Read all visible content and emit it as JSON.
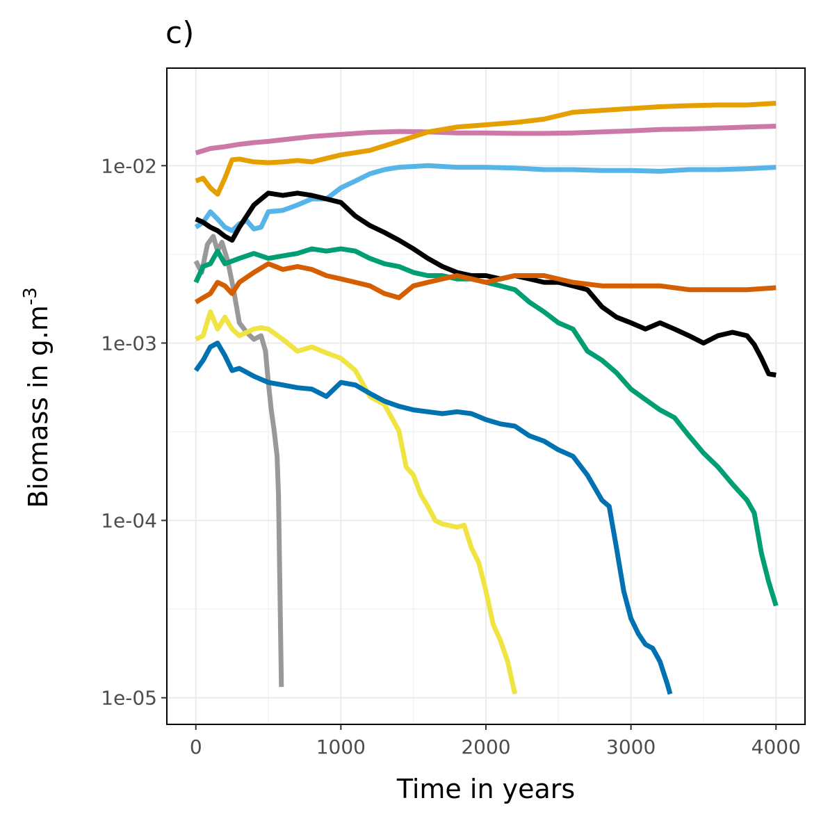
{
  "chart_data": {
    "type": "line",
    "title": "c)",
    "xlabel": "Time in years",
    "ylabel": "Biomass in g.m",
    "ylabel_superscript": "-3",
    "xlim": [
      -200,
      4200
    ],
    "ylim_log10": [
      -5.15,
      -1.45
    ],
    "y_scale": "log10",
    "grid": true,
    "x_ticks": [
      {
        "value": 0,
        "label": "0"
      },
      {
        "value": 1000,
        "label": "1000"
      },
      {
        "value": 2000,
        "label": "2000"
      },
      {
        "value": 3000,
        "label": "3000"
      },
      {
        "value": 4000,
        "label": "4000"
      }
    ],
    "y_ticks": [
      {
        "value": 0.01,
        "label": "1e-02"
      },
      {
        "value": 0.001,
        "label": "1e-03"
      },
      {
        "value": 0.0001,
        "label": "1e-04"
      },
      {
        "value": 1e-05,
        "label": "1e-05"
      }
    ],
    "series": [
      {
        "color": "#999999",
        "x": [
          0,
          40,
          80,
          120,
          150,
          180,
          220,
          260,
          300,
          350,
          400,
          450,
          480,
          500,
          520,
          540,
          560,
          570,
          590
        ],
        "y": [
          0.0029,
          0.0025,
          0.0036,
          0.004,
          0.0033,
          0.0037,
          0.0029,
          0.002,
          0.0013,
          0.00115,
          0.00105,
          0.0011,
          0.0009,
          0.0006,
          0.00042,
          0.00032,
          0.00023,
          0.00014,
          1.15e-05
        ]
      },
      {
        "color": "#CC79A7",
        "x": [
          0,
          100,
          200,
          300,
          400,
          500,
          600,
          800,
          1000,
          1200,
          1400,
          1600,
          1800,
          2000,
          2200,
          2400,
          2600,
          2800,
          3000,
          3200,
          3400,
          3600,
          3800,
          4000
        ],
        "y": [
          0.0118,
          0.0125,
          0.0128,
          0.0132,
          0.0135,
          0.0137,
          0.014,
          0.0146,
          0.015,
          0.0154,
          0.0156,
          0.0155,
          0.0153,
          0.0153,
          0.0152,
          0.0152,
          0.0153,
          0.0155,
          0.0157,
          0.016,
          0.0161,
          0.0163,
          0.0165,
          0.0167
        ]
      },
      {
        "color": "#E69F00",
        "x": [
          0,
          50,
          100,
          150,
          200,
          250,
          300,
          400,
          500,
          600,
          700,
          800,
          900,
          1000,
          1200,
          1400,
          1600,
          1800,
          2000,
          2200,
          2400,
          2600,
          2800,
          3000,
          3200,
          3400,
          3600,
          3800,
          4000
        ],
        "y": [
          0.0082,
          0.0085,
          0.0075,
          0.0069,
          0.0085,
          0.0108,
          0.0109,
          0.0105,
          0.0104,
          0.0105,
          0.0107,
          0.0105,
          0.011,
          0.0115,
          0.0122,
          0.0137,
          0.0155,
          0.0165,
          0.017,
          0.0175,
          0.0183,
          0.02,
          0.0205,
          0.021,
          0.0215,
          0.0218,
          0.022,
          0.022,
          0.0225
        ]
      },
      {
        "color": "#56B4E9",
        "x": [
          0,
          50,
          100,
          150,
          200,
          250,
          300,
          350,
          400,
          450,
          500,
          600,
          700,
          800,
          900,
          1000,
          1100,
          1200,
          1300,
          1400,
          1600,
          1800,
          2000,
          2200,
          2400,
          2600,
          2800,
          3000,
          3200,
          3400,
          3600,
          3800,
          4000
        ],
        "y": [
          0.0045,
          0.0048,
          0.0055,
          0.005,
          0.0045,
          0.0043,
          0.0047,
          0.0049,
          0.0044,
          0.0045,
          0.0055,
          0.0056,
          0.006,
          0.0065,
          0.0065,
          0.0075,
          0.0082,
          0.009,
          0.0095,
          0.0098,
          0.01,
          0.0098,
          0.0098,
          0.0097,
          0.0095,
          0.0095,
          0.0094,
          0.0094,
          0.0093,
          0.0095,
          0.0095,
          0.0096,
          0.0098
        ]
      },
      {
        "color": "#000000",
        "x": [
          0,
          50,
          100,
          150,
          200,
          250,
          300,
          400,
          500,
          600,
          700,
          800,
          900,
          1000,
          1100,
          1200,
          1300,
          1400,
          1500,
          1600,
          1700,
          1800,
          1900,
          2000,
          2100,
          2200,
          2300,
          2400,
          2500,
          2600,
          2700,
          2800,
          2900,
          3000,
          3100,
          3200,
          3300,
          3400,
          3500,
          3600,
          3700,
          3800,
          3850,
          3900,
          3950,
          4000
        ],
        "y": [
          0.005,
          0.0048,
          0.0045,
          0.0043,
          0.004,
          0.0038,
          0.0045,
          0.006,
          0.007,
          0.0068,
          0.007,
          0.0068,
          0.0065,
          0.0062,
          0.0052,
          0.0046,
          0.0042,
          0.0038,
          0.0034,
          0.003,
          0.0027,
          0.0025,
          0.0024,
          0.0024,
          0.0023,
          0.0024,
          0.0023,
          0.0022,
          0.0022,
          0.0021,
          0.002,
          0.0016,
          0.0014,
          0.0013,
          0.0012,
          0.0013,
          0.0012,
          0.0011,
          0.001,
          0.0011,
          0.00115,
          0.0011,
          0.00098,
          0.00082,
          0.00067,
          0.00066
        ]
      },
      {
        "color": "#009E73",
        "x": [
          0,
          50,
          100,
          150,
          200,
          300,
          400,
          500,
          600,
          700,
          800,
          900,
          1000,
          1100,
          1200,
          1300,
          1400,
          1500,
          1600,
          1700,
          1800,
          1900,
          2000,
          2100,
          2200,
          2300,
          2400,
          2500,
          2600,
          2700,
          2800,
          2900,
          3000,
          3100,
          3200,
          3300,
          3400,
          3500,
          3600,
          3700,
          3800,
          3850,
          3900,
          3950,
          4000
        ],
        "y": [
          0.0022,
          0.0027,
          0.0028,
          0.0033,
          0.0028,
          0.003,
          0.0032,
          0.003,
          0.0031,
          0.0032,
          0.0034,
          0.0033,
          0.0034,
          0.0033,
          0.003,
          0.0028,
          0.0027,
          0.0025,
          0.0024,
          0.0024,
          0.0023,
          0.0023,
          0.0022,
          0.0021,
          0.002,
          0.0017,
          0.0015,
          0.0013,
          0.0012,
          0.0009,
          0.0008,
          0.00068,
          0.00055,
          0.00048,
          0.00042,
          0.00038,
          0.0003,
          0.00024,
          0.0002,
          0.00016,
          0.00013,
          0.00011,
          6.5e-05,
          4.5e-05,
          3.3e-05
        ]
      },
      {
        "color": "#D55E00",
        "x": [
          0,
          50,
          100,
          150,
          200,
          250,
          300,
          400,
          500,
          600,
          700,
          800,
          900,
          1000,
          1100,
          1200,
          1300,
          1400,
          1500,
          1600,
          1700,
          1800,
          1900,
          2000,
          2100,
          2200,
          2400,
          2600,
          2800,
          3000,
          3200,
          3400,
          3600,
          3800,
          4000
        ],
        "y": [
          0.0017,
          0.0018,
          0.0019,
          0.0022,
          0.0021,
          0.0019,
          0.0022,
          0.0025,
          0.0028,
          0.0026,
          0.0027,
          0.0026,
          0.0024,
          0.0023,
          0.0022,
          0.0021,
          0.0019,
          0.0018,
          0.0021,
          0.0022,
          0.0023,
          0.0024,
          0.0023,
          0.0022,
          0.0023,
          0.0024,
          0.0024,
          0.0022,
          0.0021,
          0.0021,
          0.0021,
          0.002,
          0.002,
          0.002,
          0.00205
        ]
      },
      {
        "color": "#F0E442",
        "x": [
          0,
          50,
          100,
          150,
          200,
          250,
          300,
          400,
          450,
          500,
          600,
          700,
          800,
          900,
          1000,
          1100,
          1200,
          1300,
          1400,
          1450,
          1500,
          1550,
          1600,
          1650,
          1700,
          1750,
          1800,
          1850,
          1900,
          1950,
          2000,
          2050,
          2100,
          2150,
          2200
        ],
        "y": [
          0.00105,
          0.0011,
          0.0015,
          0.0012,
          0.0014,
          0.0012,
          0.0011,
          0.0012,
          0.00122,
          0.0012,
          0.00105,
          0.0009,
          0.00095,
          0.00088,
          0.00082,
          0.0007,
          0.0005,
          0.00045,
          0.00032,
          0.0002,
          0.00018,
          0.00014,
          0.00012,
          0.0001,
          9.55e-05,
          9.35e-05,
          9.15e-05,
          9.4e-05,
          7e-05,
          5.8e-05,
          4e-05,
          2.6e-05,
          2.1e-05,
          1.6e-05,
          1.05e-05
        ]
      },
      {
        "color": "#0072B2",
        "x": [
          0,
          50,
          100,
          150,
          200,
          250,
          300,
          400,
          500,
          600,
          700,
          800,
          900,
          1000,
          1100,
          1200,
          1300,
          1400,
          1500,
          1600,
          1700,
          1800,
          1900,
          2000,
          2100,
          2200,
          2300,
          2400,
          2500,
          2600,
          2700,
          2800,
          2850,
          2900,
          2950,
          3000,
          3050,
          3100,
          3150,
          3200,
          3250,
          3270
        ],
        "y": [
          0.0007,
          0.0008,
          0.00095,
          0.001,
          0.00085,
          0.0007,
          0.00072,
          0.00065,
          0.0006,
          0.00058,
          0.00056,
          0.00055,
          0.0005,
          0.0006,
          0.00058,
          0.00052,
          0.00047,
          0.00044,
          0.00042,
          0.00041,
          0.0004,
          0.00041,
          0.0004,
          0.00037,
          0.00035,
          0.00034,
          0.0003,
          0.00028,
          0.00025,
          0.00023,
          0.00018,
          0.00013,
          0.00012,
          7e-05,
          4e-05,
          2.8e-05,
          2.3e-05,
          2e-05,
          1.9e-05,
          1.6e-05,
          1.2e-05,
          1.05e-05
        ]
      }
    ]
  }
}
